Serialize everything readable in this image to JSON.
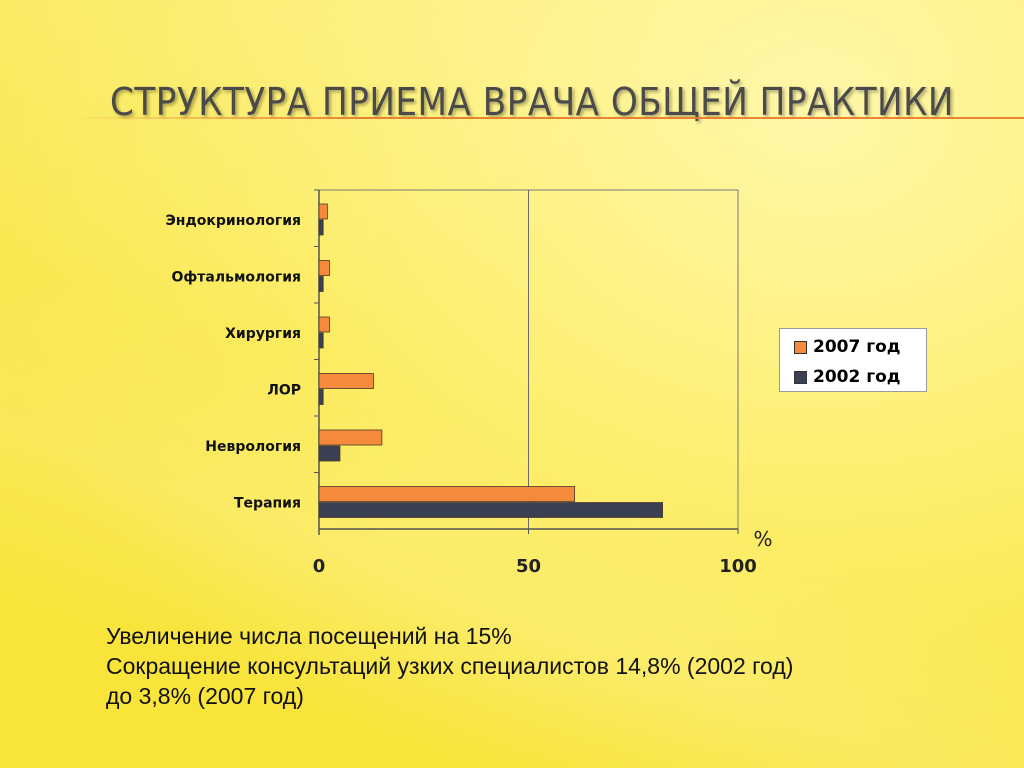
{
  "slide": {
    "title": "СТРУКТУРА ПРИЕМА ВРАЧА ОБЩЕЙ ПРАКТИКИ",
    "notes": [
      "Увеличение числа посещений на 15%",
      "Сокращение консультаций узких специалистов 14,8% (2002 год)",
      "до 3,8% (2007 год)"
    ]
  },
  "chart_data": {
    "type": "bar",
    "orientation": "horizontal",
    "categories": [
      "Эндокринология",
      "Офтальмология",
      "Хирургия",
      "ЛОР",
      "Неврология",
      "Терапия"
    ],
    "series": [
      {
        "name": "2007 год",
        "color": "#f58a3c",
        "values": [
          2,
          2.5,
          2.5,
          13,
          15,
          61
        ]
      },
      {
        "name": "2002 год",
        "color": "#3a3f52",
        "values": [
          1,
          1,
          1,
          1,
          5,
          82
        ]
      }
    ],
    "xlim": [
      0,
      100
    ],
    "xticks": [
      "0",
      "50",
      "100"
    ],
    "xunit": "%",
    "grid": "vertical at 50",
    "legend": "right"
  }
}
